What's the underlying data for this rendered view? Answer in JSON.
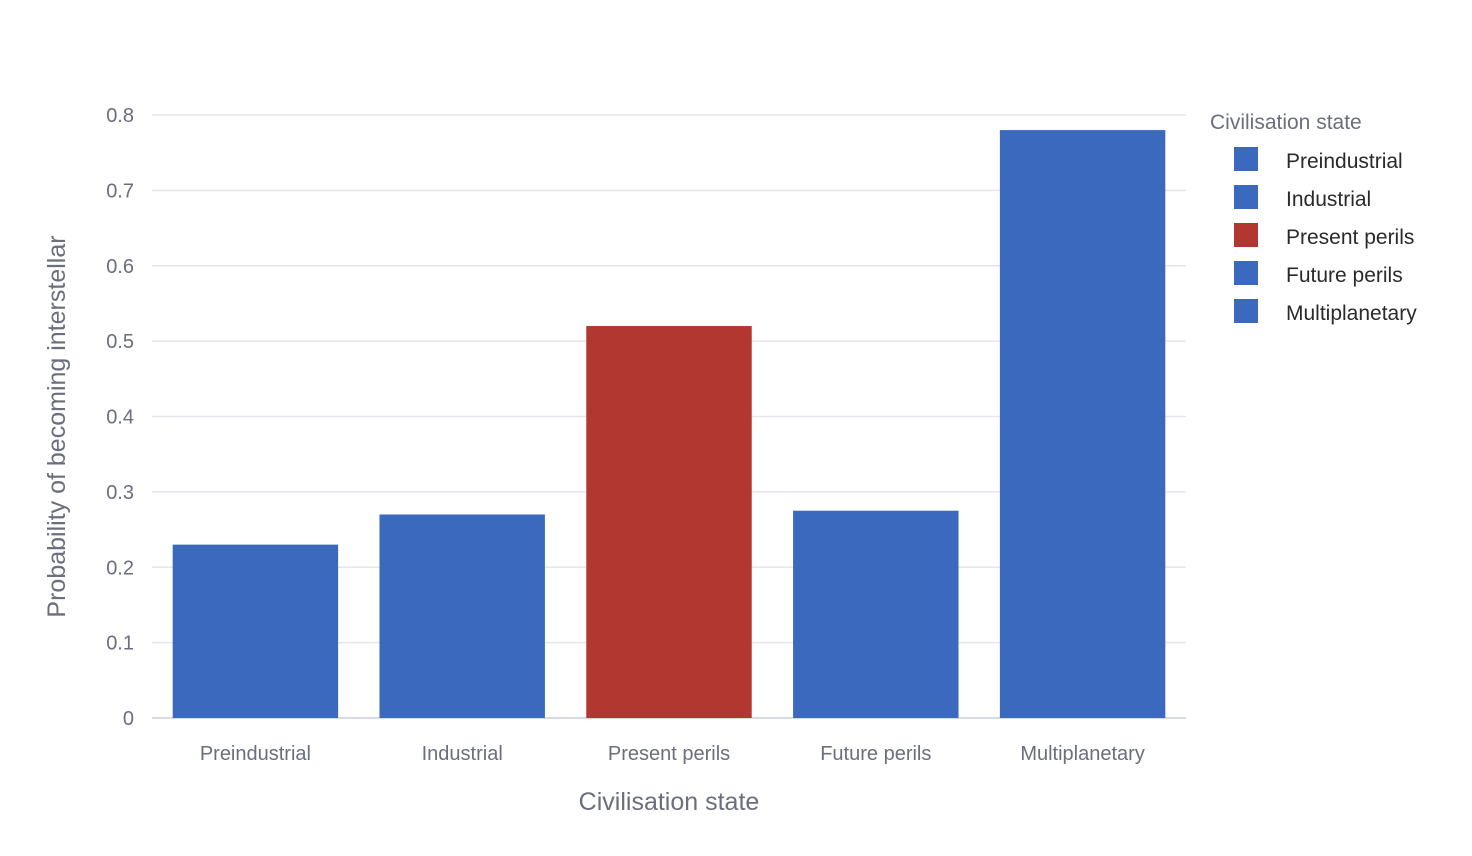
{
  "chart_data": {
    "type": "bar",
    "categories": [
      "Preindustrial",
      "Industrial",
      "Present perils",
      "Future perils",
      "Multiplanetary"
    ],
    "values": [
      0.23,
      0.27,
      0.52,
      0.275,
      0.78
    ],
    "colors": [
      "#3a69bd",
      "#3a69bd",
      "#b33731",
      "#3a69bd",
      "#3a69bd"
    ],
    "title": "",
    "xlabel": "Civilisation state",
    "ylabel": "Probability of becoming interstellar",
    "ylim": [
      0,
      0.8
    ],
    "yticks": [
      0,
      0.1,
      0.2,
      0.3,
      0.4,
      0.5,
      0.6,
      0.7,
      0.8
    ],
    "ytick_labels": [
      "0",
      "0.1",
      "0.2",
      "0.3",
      "0.4",
      "0.5",
      "0.6",
      "0.7",
      "0.8"
    ],
    "grid": true,
    "legend": {
      "title": "Civilisation state",
      "placement": "top-right",
      "entries": [
        "Preindustrial",
        "Industrial",
        "Present perils",
        "Future perils",
        "Multiplanetary"
      ]
    }
  }
}
